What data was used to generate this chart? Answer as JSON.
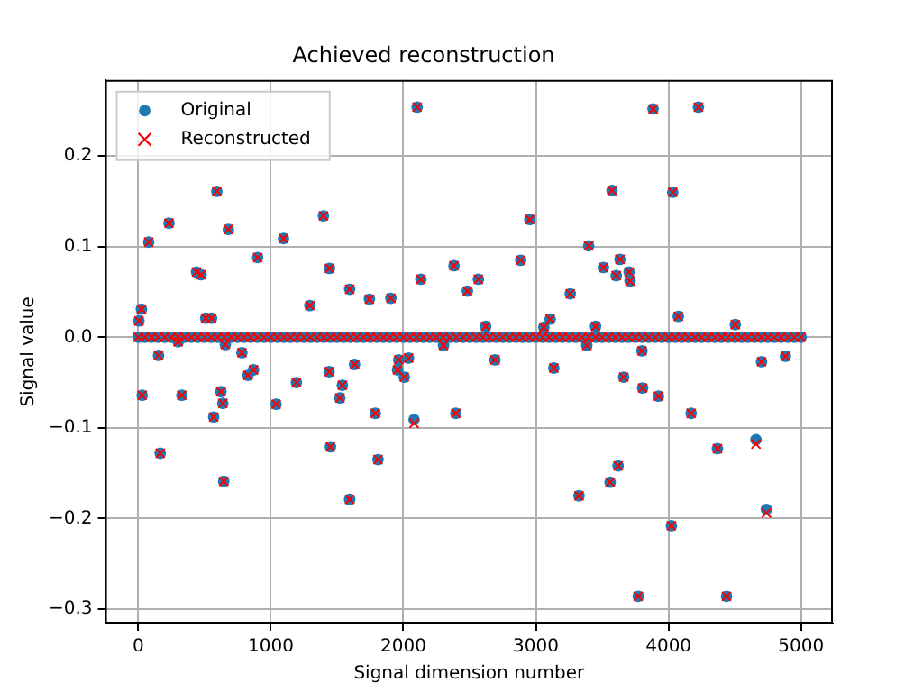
{
  "chart_data": {
    "type": "scatter",
    "title": "Achieved reconstruction",
    "xlabel": "Signal dimension number",
    "ylabel": "Signal value",
    "x": [
      0,
      50,
      100,
      150,
      200,
      250,
      300,
      350,
      400,
      450,
      500,
      550,
      600,
      650,
      700,
      750,
      800,
      850,
      900,
      950,
      1000,
      1050,
      1100,
      1150,
      1200,
      1250,
      1300,
      1350,
      1400,
      1450,
      1500,
      1550,
      1600,
      1650,
      1700,
      1750,
      1800,
      1850,
      1900,
      1950,
      2000,
      2050,
      2100,
      2150,
      2200,
      2250,
      2300,
      2350,
      2400,
      2450,
      2500,
      2550,
      2600,
      2650,
      2700,
      2750,
      2800,
      2850,
      2900,
      2950,
      3000,
      3050,
      3100,
      3150,
      3200,
      3250,
      3300,
      3350,
      3400,
      3450,
      3500,
      3550,
      3600,
      3650,
      3700,
      3750,
      3800,
      3850,
      3900,
      3950,
      4000,
      4050,
      4100,
      4150,
      4200,
      4250,
      4300,
      4350,
      4400,
      4450,
      4500,
      4550,
      4600,
      4650,
      4700,
      4750,
      4800,
      4850,
      4900,
      4950,
      5000,
      5,
      24,
      79,
      232,
      593,
      680,
      440,
      474,
      901,
      1096,
      1397,
      1443,
      1295,
      1595,
      1744,
      1906,
      2132,
      2382,
      2483,
      509,
      553,
      2104,
      3884,
      4226,
      3574,
      4032,
      2954,
      2566,
      2885,
      3398,
      3509,
      3634,
      3606,
      3703,
      3710,
      3259,
      2621,
      3107,
      3060,
      3450,
      4074,
      4504,
      153,
      301,
      30,
      329,
      657,
      782,
      828,
      870,
      624,
      638,
      569,
      166,
      645,
      1040,
      1193,
      1440,
      1540,
      1521,
      1632,
      1450,
      1595,
      1789,
      1809,
      1965,
      2039,
      1956,
      2007,
      2081,
      2303,
      2396,
      2691,
      3135,
      3384,
      3800,
      3662,
      3805,
      3925,
      4171,
      4702,
      4882,
      4369,
      4660,
      3620,
      3560,
      3325,
      4022,
      4739,
      3772,
      4438
    ],
    "series": [
      {
        "name": "Original",
        "color": "#1f77b4",
        "marker": "circle",
        "values": [
          0,
          0,
          0,
          0,
          0,
          0,
          0,
          0,
          0,
          0,
          0,
          0,
          0,
          0,
          0,
          0,
          0,
          0,
          0,
          0,
          0,
          0,
          0,
          0,
          0,
          0,
          0,
          0,
          0,
          0,
          0,
          0,
          0,
          0,
          0,
          0,
          0,
          0,
          0,
          0,
          0,
          0,
          0,
          0,
          0,
          0,
          0,
          0,
          0,
          0,
          0,
          0,
          0,
          0,
          0,
          0,
          0,
          0,
          0,
          0,
          0,
          0,
          0,
          0,
          0,
          0,
          0,
          0,
          0,
          0,
          0,
          0,
          0,
          0,
          0,
          0,
          0,
          0,
          0,
          0,
          0,
          0,
          0,
          0,
          0,
          0,
          0,
          0,
          0,
          0,
          0,
          0,
          0,
          0,
          0,
          0,
          0,
          0,
          0,
          0,
          0,
          0.018,
          0.031,
          0.105,
          0.126,
          0.161,
          0.119,
          0.072,
          0.069,
          0.088,
          0.109,
          0.134,
          0.076,
          0.035,
          0.053,
          0.042,
          0.043,
          0.064,
          0.079,
          0.051,
          0.021,
          0.021,
          0.254,
          0.252,
          0.254,
          0.162,
          0.16,
          0.13,
          0.064,
          0.085,
          0.101,
          0.077,
          0.086,
          0.068,
          0.072,
          0.062,
          0.048,
          0.012,
          0.02,
          0.011,
          0.012,
          0.023,
          0.014,
          -0.02,
          -0.005,
          -0.064,
          -0.064,
          -0.008,
          -0.017,
          -0.042,
          -0.036,
          -0.06,
          -0.073,
          -0.088,
          -0.128,
          -0.159,
          -0.074,
          -0.05,
          -0.038,
          -0.053,
          -0.067,
          -0.03,
          -0.121,
          -0.179,
          -0.084,
          -0.135,
          -0.025,
          -0.023,
          -0.036,
          -0.044,
          -0.091,
          -0.009,
          -0.084,
          -0.025,
          -0.034,
          -0.009,
          -0.015,
          -0.044,
          -0.056,
          -0.065,
          -0.084,
          -0.027,
          -0.021,
          -0.123,
          -0.113,
          -0.142,
          -0.16,
          -0.175,
          -0.208,
          -0.19,
          -0.286,
          -0.286
        ]
      },
      {
        "name": "Reconstructed",
        "color": "#ff0000",
        "marker": "cross",
        "values": [
          0,
          0,
          0,
          0,
          0,
          0,
          0,
          0,
          0,
          0,
          0,
          0,
          0,
          0,
          0,
          0,
          0,
          0,
          0,
          0,
          0,
          0,
          0,
          0,
          0,
          0,
          0,
          0,
          0,
          0,
          0,
          0,
          0,
          0,
          0,
          0,
          0,
          0,
          0,
          0,
          0,
          0,
          0,
          0,
          0,
          0,
          0,
          0,
          0,
          0,
          0,
          0,
          0,
          0,
          0,
          0,
          0,
          0,
          0,
          0,
          0,
          0,
          0,
          0,
          0,
          0,
          0,
          0,
          0,
          0,
          0,
          0,
          0,
          0,
          0,
          0,
          0,
          0,
          0,
          0,
          0,
          0,
          0,
          0,
          0,
          0,
          0,
          0,
          0,
          0,
          0,
          0,
          0,
          0,
          0,
          0,
          0,
          0,
          0,
          0,
          0,
          0.018,
          0.031,
          0.105,
          0.126,
          0.161,
          0.119,
          0.072,
          0.069,
          0.088,
          0.109,
          0.134,
          0.076,
          0.035,
          0.053,
          0.042,
          0.043,
          0.064,
          0.079,
          0.051,
          0.021,
          0.021,
          0.254,
          0.252,
          0.254,
          0.162,
          0.16,
          0.13,
          0.064,
          0.085,
          0.101,
          0.077,
          0.086,
          0.068,
          0.072,
          0.062,
          0.048,
          0.012,
          0.02,
          0.011,
          0.012,
          0.023,
          0.014,
          -0.02,
          -0.005,
          -0.064,
          -0.064,
          -0.008,
          -0.017,
          -0.042,
          -0.036,
          -0.06,
          -0.073,
          -0.088,
          -0.128,
          -0.159,
          -0.074,
          -0.05,
          -0.038,
          -0.053,
          -0.067,
          -0.03,
          -0.121,
          -0.179,
          -0.084,
          -0.135,
          -0.025,
          -0.023,
          -0.036,
          -0.044,
          -0.095,
          -0.009,
          -0.084,
          -0.025,
          -0.034,
          -0.009,
          -0.015,
          -0.044,
          -0.056,
          -0.065,
          -0.084,
          -0.027,
          -0.021,
          -0.123,
          -0.118,
          -0.142,
          -0.16,
          -0.175,
          -0.208,
          -0.194,
          -0.286,
          -0.286
        ]
      }
    ],
    "xlim": [
      -250,
      5240
    ],
    "xticks": [
      0,
      1000,
      2000,
      3000,
      4000,
      5000
    ],
    "ylim": [
      -0.316,
      0.284
    ],
    "yticks": [
      {
        "value": -0.3,
        "label": "−0.3"
      },
      {
        "value": -0.2,
        "label": "−0.2"
      },
      {
        "value": -0.1,
        "label": "−0.1"
      },
      {
        "value": 0,
        "label": "0.0"
      },
      {
        "value": 0.1,
        "label": "0.1"
      },
      {
        "value": 0.2,
        "label": "0.2"
      }
    ],
    "grid": true,
    "legend": "top left"
  }
}
